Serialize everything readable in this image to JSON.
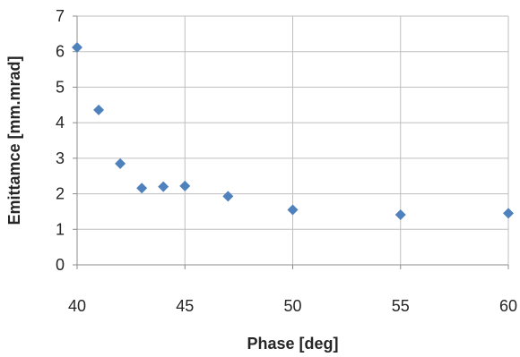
{
  "chart_data": {
    "type": "scatter",
    "title": "",
    "xlabel": "Phase [deg]",
    "ylabel": "Emittamce [mm.mrad]",
    "xlim": [
      40,
      60
    ],
    "ylim": [
      0,
      7
    ],
    "x_ticks": [
      "40",
      "45",
      "50",
      "55",
      "60"
    ],
    "y_ticks": [
      "0",
      "1",
      "2",
      "3",
      "4",
      "5",
      "6",
      "7"
    ],
    "grid": true,
    "legend": "none",
    "marker": "diamond",
    "color": "#4f81bd",
    "points": [
      {
        "x": 40,
        "y": 6.12
      },
      {
        "x": 41,
        "y": 4.36
      },
      {
        "x": 42,
        "y": 2.85
      },
      {
        "x": 43,
        "y": 2.16
      },
      {
        "x": 44,
        "y": 2.2
      },
      {
        "x": 45,
        "y": 2.22
      },
      {
        "x": 47,
        "y": 1.93
      },
      {
        "x": 50,
        "y": 1.55
      },
      {
        "x": 55,
        "y": 1.41
      },
      {
        "x": 60,
        "y": 1.45
      }
    ]
  }
}
